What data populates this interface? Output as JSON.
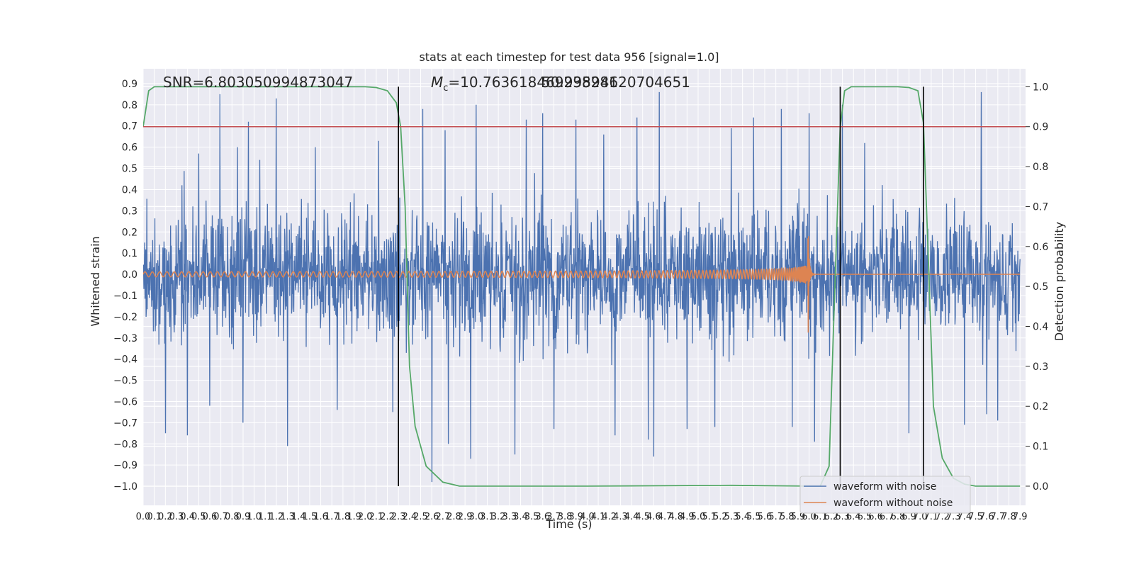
{
  "chart_data": {
    "type": "line",
    "title": "stats at each timestep for test data 956 [signal=1.0]",
    "xlabel": "Time (s)",
    "ylabel": "Whitened strain",
    "y2label": "Detection probability",
    "xlim": [
      0.0,
      7.95
    ],
    "ylim": [
      -1.09,
      0.97
    ],
    "y2lim": [
      -0.048,
      1.045
    ],
    "xticks": [
      "0.0",
      "0.1",
      "0.2",
      "0.3",
      "0.4",
      "0.5",
      "0.6",
      "0.7",
      "0.8",
      "0.9",
      "1.0",
      "1.1",
      "1.2",
      "1.3",
      "1.4",
      "1.5",
      "1.6",
      "1.7",
      "1.8",
      "1.9",
      "2.0",
      "2.1",
      "2.2",
      "2.3",
      "2.4",
      "2.5",
      "2.6",
      "2.7",
      "2.8",
      "2.9",
      "3.0",
      "3.1",
      "3.2",
      "3.3",
      "3.4",
      "3.5",
      "3.6",
      "3.7",
      "3.8",
      "3.9",
      "4.0",
      "4.1",
      "4.2",
      "4.3",
      "4.4",
      "4.5",
      "4.6",
      "4.7",
      "4.8",
      "4.9",
      "5.0",
      "5.1",
      "5.2",
      "5.3",
      "5.4",
      "5.5",
      "5.6",
      "5.7",
      "5.8",
      "5.9",
      "6.0",
      "6.1",
      "6.2",
      "6.3",
      "6.4",
      "6.5",
      "6.6",
      "6.7",
      "6.8",
      "6.9",
      "7.0",
      "7.1",
      "7.2",
      "7.3",
      "7.4",
      "7.5",
      "7.6",
      "7.7",
      "7.8",
      "7.9"
    ],
    "yticks": [
      "0.9",
      "0.8",
      "0.7",
      "0.6",
      "0.5",
      "0.4",
      "0.3",
      "0.2",
      "0.1",
      "0.0",
      "−0.1",
      "−0.2",
      "−0.3",
      "−0.4",
      "−0.5",
      "−0.6",
      "−0.7",
      "−0.8",
      "−0.9",
      "−1.0"
    ],
    "y2ticks": [
      "1.0",
      "0.9",
      "0.8",
      "0.7",
      "0.6",
      "0.5",
      "0.4",
      "0.3",
      "0.2",
      "0.1",
      "0.0"
    ],
    "annotations": {
      "snr": "SNR=6.803050994873047",
      "mc_symbol": "M",
      "mc_sub": "c",
      "mc_value": "=10.763618469238281",
      "overlap": "50.99594620704651"
    },
    "threshold": 0.9,
    "vertical_lines_x": [
      2.3,
      6.28,
      7.03
    ],
    "series": [
      {
        "name": "waveform with noise",
        "color": "#4c72b0",
        "envelope": "random noise in about [-0.85, 0.86]",
        "spikes": [
          [
            0.2,
            0.53
          ],
          [
            0.5,
            0.57
          ],
          [
            0.69,
            0.85
          ],
          [
            0.85,
            0.6
          ],
          [
            0.95,
            0.72
          ],
          [
            1.05,
            0.54
          ],
          [
            1.2,
            0.83
          ],
          [
            1.55,
            0.6
          ],
          [
            1.75,
            0.63
          ],
          [
            2.12,
            0.63
          ],
          [
            2.52,
            0.78
          ],
          [
            2.72,
            0.68
          ],
          [
            3.0,
            0.8
          ],
          [
            3.45,
            0.73
          ],
          [
            3.6,
            0.76
          ],
          [
            3.9,
            0.73
          ],
          [
            4.15,
            0.66
          ],
          [
            4.45,
            0.74
          ],
          [
            4.65,
            0.86
          ],
          [
            5.3,
            0.69
          ],
          [
            5.5,
            0.74
          ],
          [
            5.75,
            0.78
          ],
          [
            6.0,
            0.76
          ],
          [
            6.3,
            0.8
          ],
          [
            6.5,
            0.62
          ],
          [
            6.9,
            0.7
          ],
          [
            7.4,
            0.8
          ],
          [
            7.55,
            0.86
          ],
          [
            0.2,
            -0.75
          ],
          [
            0.4,
            -0.76
          ],
          [
            0.6,
            -0.62
          ],
          [
            0.9,
            -0.7
          ],
          [
            1.3,
            -0.81
          ],
          [
            1.75,
            -0.64
          ],
          [
            2.25,
            -0.65
          ],
          [
            2.6,
            -0.98
          ],
          [
            2.75,
            -0.8
          ],
          [
            2.95,
            -0.87
          ],
          [
            3.35,
            -0.85
          ],
          [
            3.7,
            -0.73
          ],
          [
            4.25,
            -0.76
          ],
          [
            4.55,
            -0.78
          ],
          [
            4.6,
            -0.86
          ],
          [
            4.9,
            -0.73
          ],
          [
            5.15,
            -0.72
          ],
          [
            5.85,
            -0.72
          ],
          [
            6.05,
            -0.79
          ],
          [
            6.9,
            -0.75
          ],
          [
            7.4,
            -0.71
          ],
          [
            7.6,
            -0.66
          ],
          [
            7.7,
            -0.69
          ]
        ]
      },
      {
        "name": "waveform without noise",
        "color": "#dd8452",
        "chirp_end": 6.0,
        "amplitude_start": 0.012,
        "amplitude_peak_pos": 0.19,
        "amplitude_peak_neg": -0.28
      },
      {
        "name": "detection probability",
        "color": "#55a868",
        "points": [
          [
            0.0,
            0.9
          ],
          [
            0.05,
            0.99
          ],
          [
            0.1,
            1.0
          ],
          [
            2.0,
            1.0
          ],
          [
            2.1,
            0.998
          ],
          [
            2.2,
            0.99
          ],
          [
            2.28,
            0.96
          ],
          [
            2.32,
            0.9
          ],
          [
            2.36,
            0.7
          ],
          [
            2.4,
            0.3
          ],
          [
            2.45,
            0.15
          ],
          [
            2.55,
            0.05
          ],
          [
            2.7,
            0.01
          ],
          [
            2.85,
            0.0
          ],
          [
            4.0,
            0.0
          ],
          [
            5.3,
            0.002
          ],
          [
            6.0,
            0.0
          ],
          [
            6.1,
            0.0
          ],
          [
            6.18,
            0.05
          ],
          [
            6.22,
            0.4
          ],
          [
            6.28,
            0.9
          ],
          [
            6.32,
            0.99
          ],
          [
            6.38,
            1.0
          ],
          [
            6.8,
            1.0
          ],
          [
            6.9,
            0.998
          ],
          [
            6.98,
            0.99
          ],
          [
            7.03,
            0.91
          ],
          [
            7.07,
            0.6
          ],
          [
            7.12,
            0.2
          ],
          [
            7.2,
            0.07
          ],
          [
            7.3,
            0.02
          ],
          [
            7.4,
            0.005
          ],
          [
            7.5,
            0.0
          ],
          [
            7.9,
            0.0
          ]
        ]
      }
    ],
    "legend": {
      "placement": "lower-right",
      "entries": [
        "waveform with noise",
        "waveform without noise"
      ]
    },
    "grid": true
  }
}
